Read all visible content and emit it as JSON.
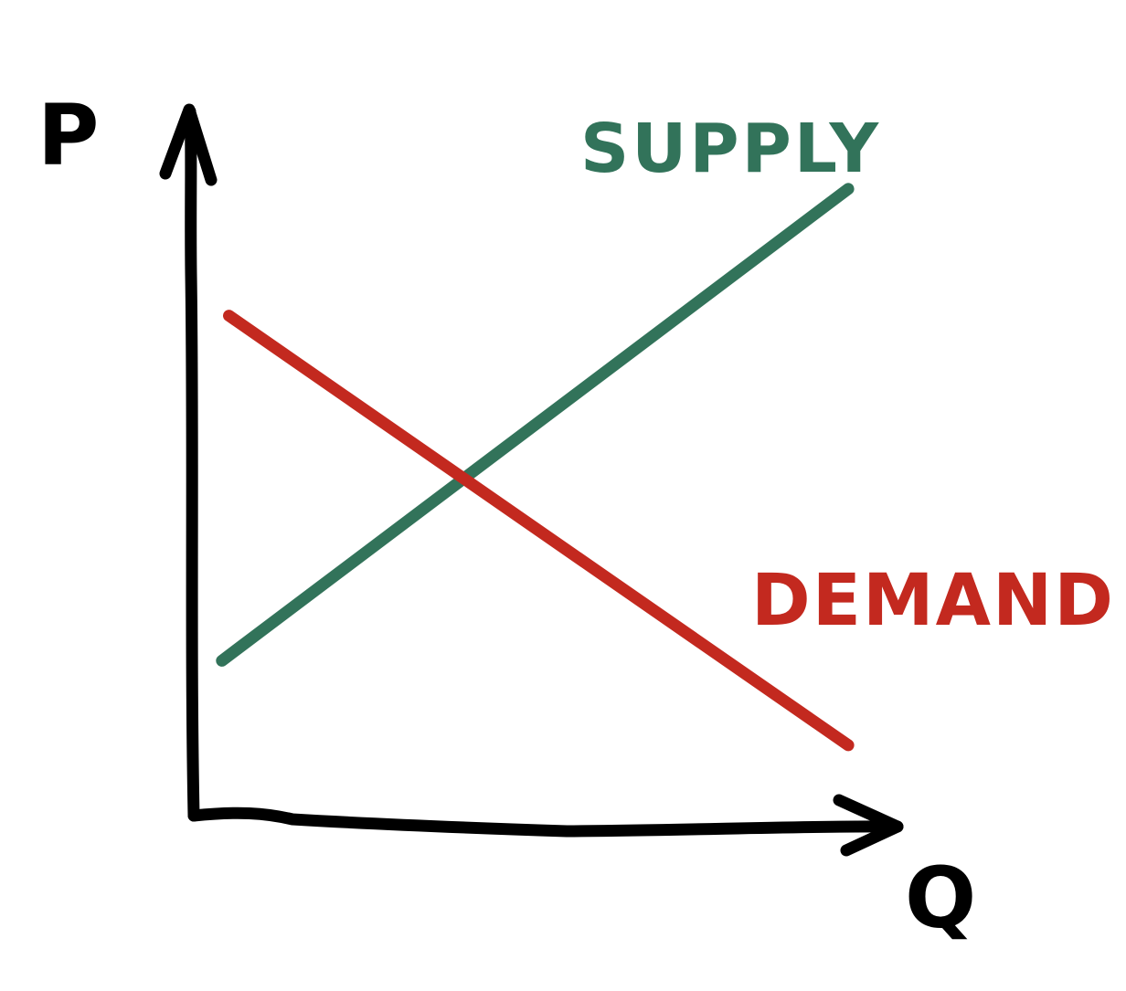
{
  "chart_data": {
    "type": "line",
    "title": "",
    "xlabel": "Q",
    "ylabel": "P",
    "grid": false,
    "xlim": [
      0,
      10
    ],
    "ylim": [
      0,
      10
    ],
    "series": [
      {
        "name": "SUPPLY",
        "x": [
          0.4,
          9.3
        ],
        "y": [
          2.2,
          8.9
        ]
      },
      {
        "name": "DEMAND",
        "x": [
          0.5,
          9.3
        ],
        "y": [
          7.1,
          1.0
        ]
      }
    ]
  },
  "colors": {
    "supply": "#32735a",
    "demand": "#c3291f",
    "axes": "#000000"
  }
}
